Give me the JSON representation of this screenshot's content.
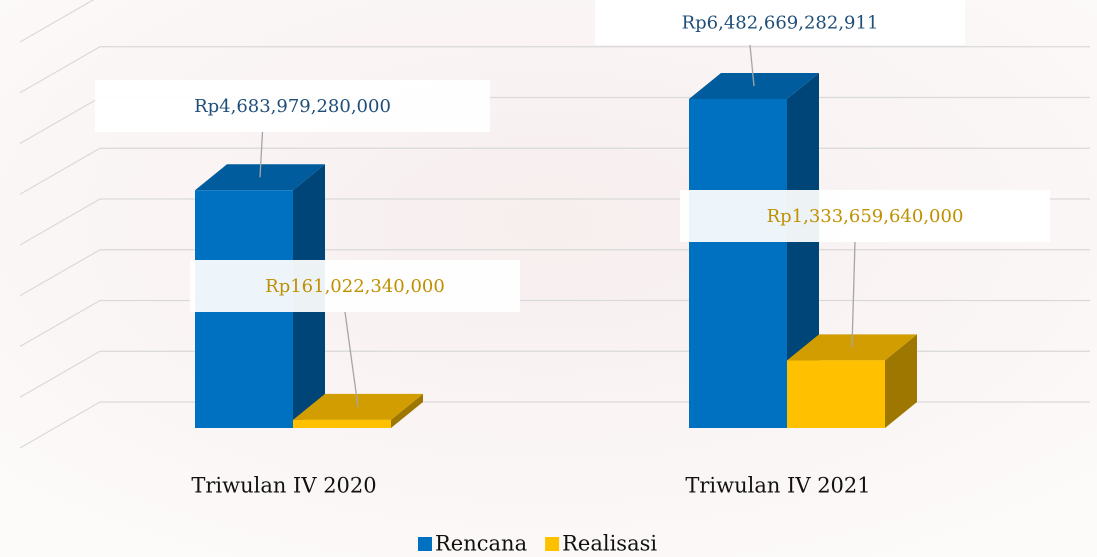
{
  "chart_data": {
    "type": "bar3d",
    "categories": [
      "Triwulan IV 2020",
      "Triwulan IV 2021"
    ],
    "series": [
      {
        "name": "Rencana",
        "color": "#0070c0",
        "values": [
          4683979280000,
          6482669282911
        ],
        "value_labels": [
          "Rp4,683,979,280,000",
          "Rp6,482,669,282,911"
        ]
      },
      {
        "name": "Realisasi",
        "color": "#ffc000",
        "values": [
          161022340000,
          1333659640000
        ],
        "value_labels": [
          "Rp161,022,340,000",
          "Rp1,333,659,640,000"
        ]
      }
    ],
    "ylim": [
      0,
      8000000000000
    ],
    "yticks": [
      0,
      1000000000000,
      2000000000000,
      3000000000000,
      4000000000000,
      5000000000000,
      6000000000000,
      7000000000000,
      8000000000000
    ],
    "grid": true,
    "legend": "bottom"
  }
}
